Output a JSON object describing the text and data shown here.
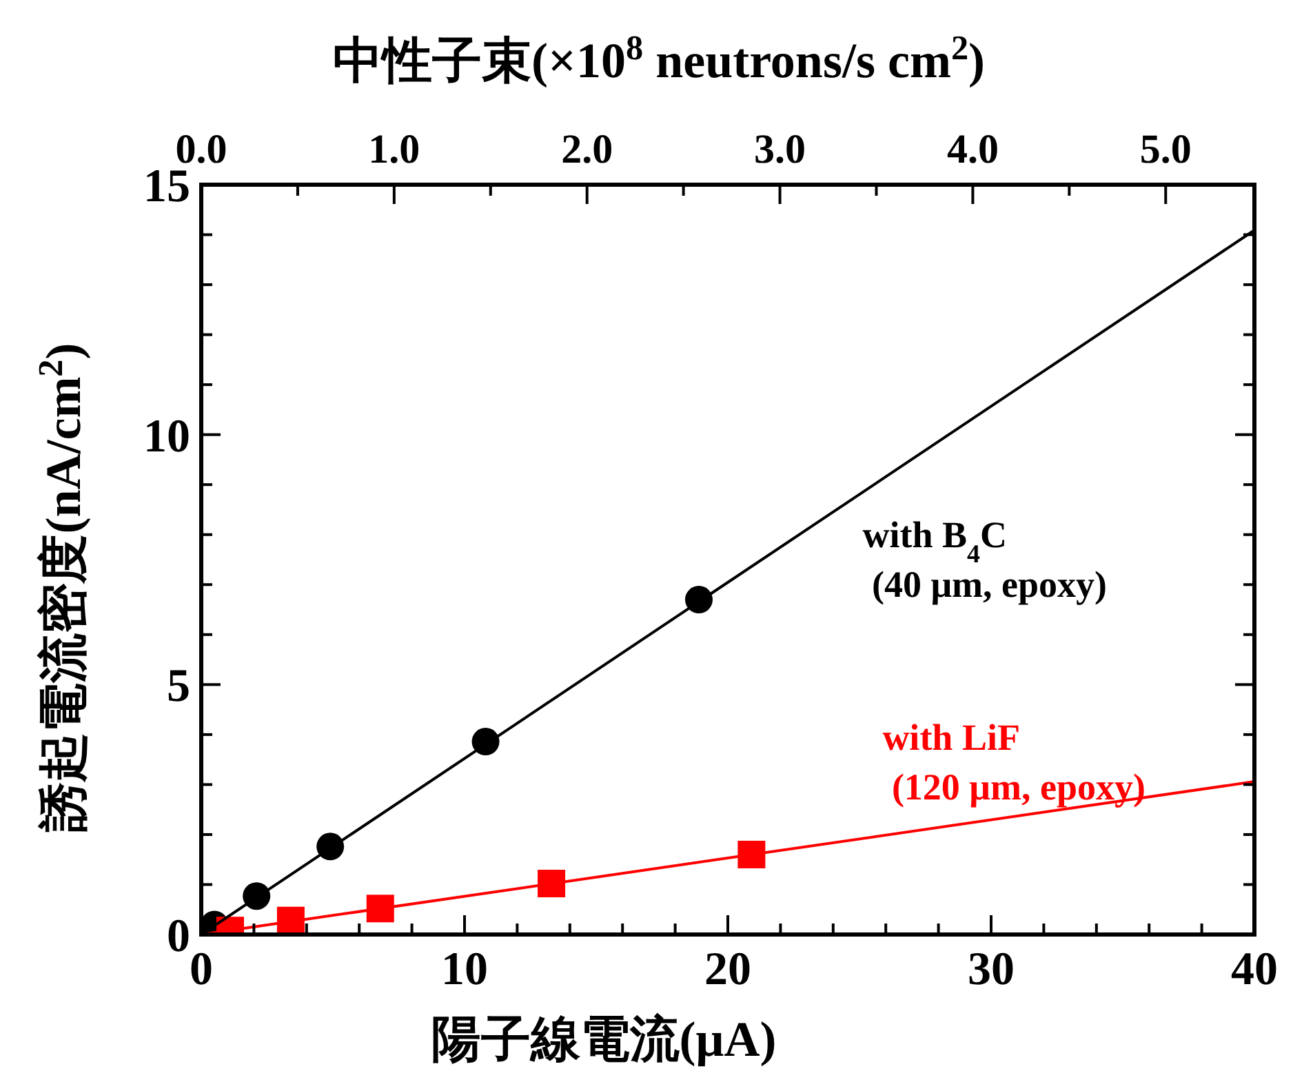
{
  "chart_data": {
    "type": "scatter",
    "x2label": "中性子束(×10$^{8}$ neutrons/s cm$^{2}$)",
    "xlabel": "陽子線電流(μA)",
    "ylabel": "誘起電流密度(nA/cm$^{2}$)",
    "xlim": [
      0,
      40
    ],
    "xticks": [
      0,
      {
        "value": 2,
        "label": null
      },
      {
        "value": 4,
        "label": null
      },
      {
        "value": 6,
        "label": null
      },
      {
        "value": 8,
        "label": null
      },
      10,
      {
        "value": 12,
        "label": null
      },
      {
        "value": 14,
        "label": null
      },
      {
        "value": 16,
        "label": null
      },
      {
        "value": 18,
        "label": null
      },
      20,
      {
        "value": 22,
        "label": null
      },
      {
        "value": 24,
        "label": null
      },
      {
        "value": 26,
        "label": null
      },
      {
        "value": 28,
        "label": null
      },
      30,
      {
        "value": 32,
        "label": null
      },
      {
        "value": 34,
        "label": null
      },
      {
        "value": 36,
        "label": null
      },
      {
        "value": 38,
        "label": null
      },
      40
    ],
    "ylim": [
      0,
      15
    ],
    "yticks": [
      0,
      {
        "value": 1,
        "label": null
      },
      {
        "value": 2,
        "label": null
      },
      {
        "value": 3,
        "label": null
      },
      {
        "value": 4,
        "label": null
      },
      5,
      {
        "value": 6,
        "label": null
      },
      {
        "value": 7,
        "label": null
      },
      {
        "value": 8,
        "label": null
      },
      {
        "value": 9,
        "label": null
      },
      10,
      {
        "value": 11,
        "label": null
      },
      {
        "value": 12,
        "label": null
      },
      {
        "value": 13,
        "label": null
      },
      {
        "value": 14,
        "label": null
      },
      15
    ],
    "x2lim": [
      0,
      5.46
    ],
    "x2ticks": [
      {
        "value": 0,
        "label": "0.0"
      },
      {
        "value": 0.5,
        "label": null
      },
      {
        "value": 1,
        "label": "1.0"
      },
      {
        "value": 1.5,
        "label": null
      },
      {
        "value": 2,
        "label": "2.0"
      },
      {
        "value": 2.5,
        "label": null
      },
      {
        "value": 3,
        "label": "3.0"
      },
      {
        "value": 3.5,
        "label": null
      },
      {
        "value": 4,
        "label": "4.0"
      },
      {
        "value": 4.5,
        "label": null
      },
      {
        "value": 5,
        "label": "5.0"
      }
    ],
    "grid": false,
    "series": [
      {
        "name": "with B$_{4}$C\n (40 μm, epoxy)",
        "color": "#000000",
        "marker": "circle",
        "x": [
          0.5,
          2.1,
          4.9,
          10.8,
          18.9
        ],
        "values": [
          0.2,
          0.77,
          1.76,
          3.86,
          6.7
        ]
      },
      {
        "name": "with LiF\n (120 μm, epoxy)",
        "color": "#ff0000",
        "marker": "square",
        "x": [
          1.1,
          3.4,
          6.8,
          13.3,
          20.9
        ],
        "values": [
          0.08,
          0.28,
          0.52,
          1.02,
          1.6
        ]
      },
      {
        "type": "line",
        "color": "#000000",
        "x": [
          0,
          40
        ],
        "values": [
          0,
          14.09
        ]
      },
      {
        "type": "line",
        "color": "#ff0000",
        "x": [
          0,
          40
        ],
        "values": [
          0,
          3.06
        ]
      }
    ]
  }
}
